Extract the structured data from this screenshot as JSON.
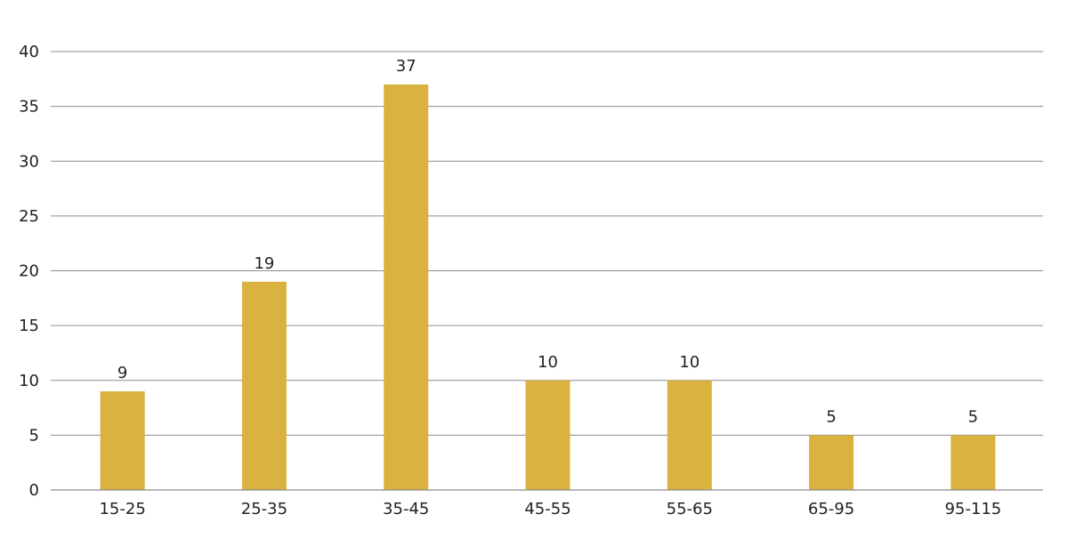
{
  "chart_data": {
    "type": "bar",
    "categories": [
      "15-25",
      "25-35",
      "35-45",
      "45-55",
      "55-65",
      "65-95",
      "95-115"
    ],
    "values": [
      9,
      19,
      37,
      10,
      10,
      5,
      5
    ],
    "data_labels": [
      "9",
      "19",
      "37",
      "10",
      "10",
      "5",
      "5"
    ],
    "y_ticks": [
      "0",
      "5",
      "10",
      "15",
      "20",
      "25",
      "30",
      "35",
      "40"
    ],
    "ylim": [
      0,
      40
    ],
    "grid": true,
    "legend": false,
    "colors": {
      "bar": "#d9b240",
      "grid": "#8c8c8c",
      "text": "#222222"
    }
  }
}
